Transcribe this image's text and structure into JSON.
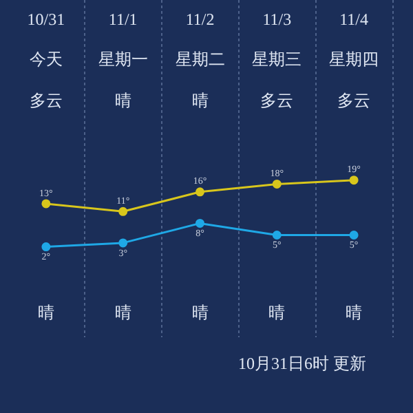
{
  "chart_data": {
    "type": "line",
    "categories": [
      "10/31",
      "11/1",
      "11/2",
      "11/3",
      "11/4"
    ],
    "series": [
      {
        "color": "#d8c61c",
        "values": [
          13,
          11,
          16,
          18,
          19
        ],
        "value_labels": [
          "13°",
          "11°",
          "16°",
          "18°",
          "19°"
        ]
      },
      {
        "color": "#1fa8e6",
        "values": [
          2,
          3,
          8,
          5,
          5
        ],
        "value_labels": [
          "2°",
          "3°",
          "8°",
          "5°",
          "5°"
        ]
      }
    ],
    "data_labels": true,
    "grid": "x",
    "legend": false,
    "marker": "circle",
    "line_style": "solid",
    "tick_labels": "x",
    "annotations": [
      "今天",
      "星期一",
      "星期二",
      "星期三",
      "星期四",
      "多云",
      "晴",
      "晴",
      "多云",
      "多云",
      "晴",
      "晴",
      "晴",
      "晴",
      "晴",
      "10月31日6时 更新"
    ]
  }
}
